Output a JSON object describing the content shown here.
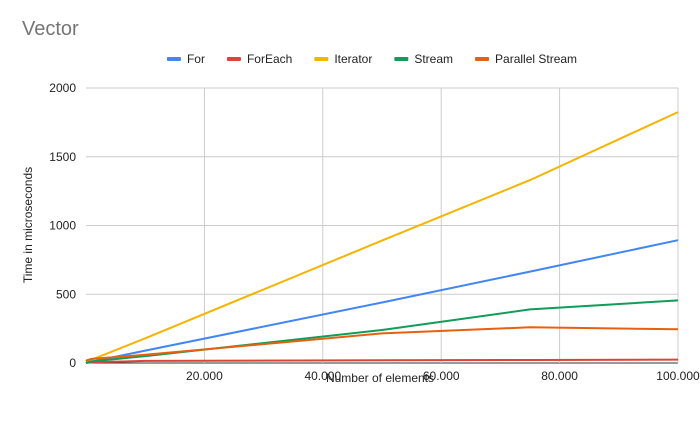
{
  "chart_data": {
    "type": "line",
    "title": "Vector",
    "xlabel": "Number of elements",
    "ylabel": "Time in microseconds",
    "xlim": [
      0,
      100000
    ],
    "ylim": [
      0,
      2000
    ],
    "x_ticks": [
      20000,
      40000,
      60000,
      80000,
      100000
    ],
    "x_tick_labels": [
      "20.000",
      "40.000",
      "60.000",
      "80.000",
      "100.000"
    ],
    "y_ticks": [
      0,
      500,
      1000,
      1500,
      2000
    ],
    "y_tick_labels": [
      "0",
      "500",
      "1000",
      "1500",
      "2000"
    ],
    "grid": true,
    "legend_position": "top",
    "series": [
      {
        "name": "For",
        "color": "#4285F4",
        "x": [
          0,
          100,
          1000,
          10000,
          50000,
          75000,
          100000
        ],
        "y": [
          0,
          2,
          10,
          90,
          440,
          665,
          893
        ]
      },
      {
        "name": "ForEach",
        "color": "#DB4437",
        "x": [
          0,
          100,
          1000,
          10000,
          50000,
          75000,
          100000
        ],
        "y": [
          0,
          1,
          5,
          15,
          20,
          22,
          25
        ]
      },
      {
        "name": "Iterator",
        "color": "#F4B400",
        "x": [
          0,
          100,
          1000,
          10000,
          50000,
          75000,
          100000
        ],
        "y": [
          0,
          5,
          25,
          180,
          890,
          1330,
          1825
        ]
      },
      {
        "name": "Stream",
        "color": "#0F9D58",
        "x": [
          0,
          100,
          1000,
          10000,
          50000,
          75000,
          100000
        ],
        "y": [
          0,
          3,
          12,
          50,
          240,
          390,
          455
        ]
      },
      {
        "name": "Parallel Stream",
        "color": "#E8600F",
        "x": [
          0,
          100,
          1000,
          10000,
          50000,
          75000,
          100000
        ],
        "y": [
          15,
          20,
          30,
          60,
          215,
          260,
          245
        ]
      }
    ]
  }
}
